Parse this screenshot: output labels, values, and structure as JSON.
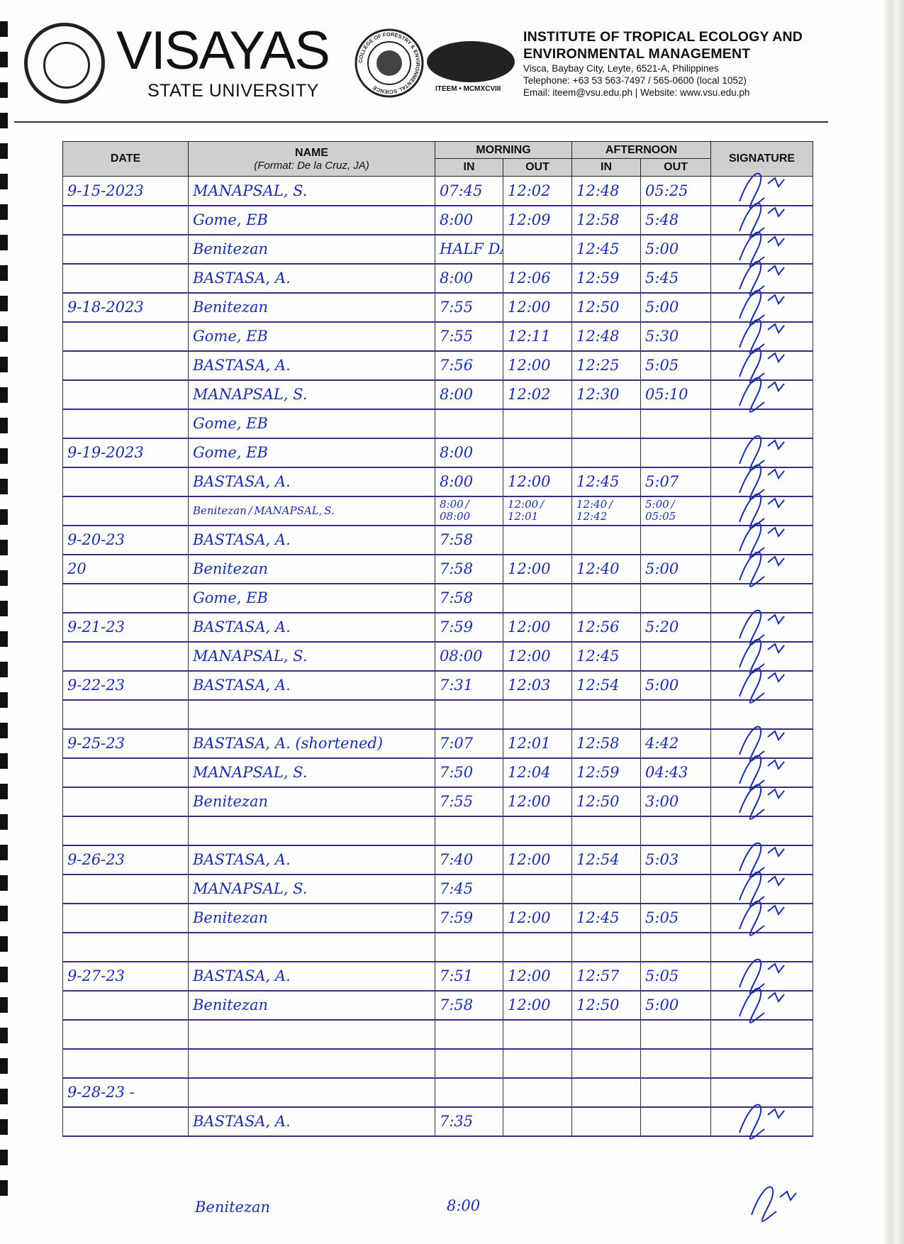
{
  "header": {
    "university_name": "VISAYAS",
    "university_sub": "STATE UNIVERSITY",
    "seal_text": "VISAYAS STATE UNIVERSITY",
    "college_logo_text": "COLLEGE OF FORESTRY & ENVIRONMENTAL SCIENCE",
    "iteem_logo_text": "ITEEM • MCMXCVIII",
    "institute_line1": "INSTITUTE OF TROPICAL ECOLOGY AND",
    "institute_line2": "ENVIRONMENTAL MANAGEMENT",
    "address": "Visca, Baybay City, Leyte, 6521-A, Philippines",
    "telephone": "Telephone: +63 53 563-7497 / 565-0600 (local 1052)",
    "email_web": "Email:  iteem@vsu.edu.ph | Website:  www.vsu.edu.ph"
  },
  "table": {
    "headers": {
      "date": "DATE",
      "name": "NAME",
      "name_format": "(Format:  De la Cruz, JA)",
      "morning": "MORNING",
      "afternoon": "AFTERNOON",
      "in": "IN",
      "out": "OUT",
      "signature": "SIGNATURE"
    },
    "rows": [
      {
        "date": "9-15-2023",
        "name": "MANAPSAL, S.",
        "am_in": "07:45",
        "am_out": "12:02",
        "pm_in": "12:48",
        "pm_out": "05:25",
        "signed": true
      },
      {
        "date": "",
        "name": "Gome, EB",
        "am_in": "8:00",
        "am_out": "12:09",
        "pm_in": "12:58",
        "pm_out": "5:48",
        "signed": true
      },
      {
        "date": "",
        "name": "Benitezan",
        "am_in": "HALF DAY",
        "am_out": "",
        "pm_in": "12:45",
        "pm_out": "5:00",
        "signed": true
      },
      {
        "date": "",
        "name": "BASTASA, A.",
        "am_in": "8:00",
        "am_out": "12:06",
        "pm_in": "12:59",
        "pm_out": "5:45",
        "signed": true
      },
      {
        "date": "9-18-2023",
        "name": "Benitezan",
        "am_in": "7:55",
        "am_out": "12:00",
        "pm_in": "12:50",
        "pm_out": "5:00",
        "signed": true
      },
      {
        "date": "",
        "name": "Gome, EB",
        "am_in": "7:55",
        "am_out": "12:11",
        "pm_in": "12:48",
        "pm_out": "5:30",
        "signed": true
      },
      {
        "date": "",
        "name": "BASTASA, A.",
        "am_in": "7:56",
        "am_out": "12:00",
        "pm_in": "12:25",
        "pm_out": "5:05",
        "signed": true
      },
      {
        "date": "",
        "name": "MANAPSAL, S.",
        "am_in": "8:00",
        "am_out": "12:02",
        "pm_in": "12:30",
        "pm_out": "05:10",
        "signed": true
      },
      {
        "date": "",
        "name": "Gome, EB",
        "am_in": "",
        "am_out": "",
        "pm_in": "",
        "pm_out": "",
        "signed": false
      },
      {
        "date": "9-19-2023",
        "name": "Gome, EB",
        "am_in": "8:00",
        "am_out": "",
        "pm_in": "",
        "pm_out": "",
        "signed": true
      },
      {
        "date": "",
        "name": "BASTASA, A.",
        "am_in": "8:00",
        "am_out": "12:00",
        "pm_in": "12:45",
        "pm_out": "5:07",
        "signed": true
      },
      {
        "date": "",
        "name": "Benitezan / MANAPSAL, S.",
        "am_in": "8:00 / 08:00",
        "am_out": "12:00 / 12:01",
        "pm_in": "12:40 / 12:42",
        "pm_out": "5:00 / 05:05",
        "signed": true
      },
      {
        "date": "9-20-23",
        "name": "BASTASA, A.",
        "am_in": "7:58",
        "am_out": "",
        "pm_in": "",
        "pm_out": "",
        "signed": true
      },
      {
        "date": "20",
        "name": "Benitezan",
        "am_in": "7:58",
        "am_out": "12:00",
        "pm_in": "12:40",
        "pm_out": "5:00",
        "signed": true
      },
      {
        "date": "",
        "name": "Gome, EB",
        "am_in": "7:58",
        "am_out": "",
        "pm_in": "",
        "pm_out": "",
        "signed": false
      },
      {
        "date": "9-21-23",
        "name": "BASTASA, A.",
        "am_in": "7:59",
        "am_out": "12:00",
        "pm_in": "12:56",
        "pm_out": "5:20",
        "signed": true
      },
      {
        "date": "",
        "name": "MANAPSAL, S.",
        "am_in": "08:00",
        "am_out": "12:00",
        "pm_in": "12:45",
        "pm_out": "",
        "signed": true
      },
      {
        "date": "9-22-23",
        "name": "BASTASA, A.",
        "am_in": "7:31",
        "am_out": "12:03",
        "pm_in": "12:54",
        "pm_out": "5:00",
        "signed": true
      },
      {
        "date": "",
        "name": "",
        "am_in": "",
        "am_out": "",
        "pm_in": "",
        "pm_out": "",
        "signed": false
      },
      {
        "date": "9-25-23",
        "name": "BASTASA, A. (shortened)",
        "am_in": "7:07",
        "am_out": "12:01",
        "pm_in": "12:58",
        "pm_out": "4:42",
        "signed": true
      },
      {
        "date": "",
        "name": "MANAPSAL, S.",
        "am_in": "7:50",
        "am_out": "12:04",
        "pm_in": "12:59",
        "pm_out": "04:43",
        "signed": true
      },
      {
        "date": "",
        "name": "Benitezan",
        "am_in": "7:55",
        "am_out": "12:00",
        "pm_in": "12:50",
        "pm_out": "3:00",
        "signed": true
      },
      {
        "date": "",
        "name": "",
        "am_in": "",
        "am_out": "",
        "pm_in": "",
        "pm_out": "",
        "signed": false
      },
      {
        "date": "9-26-23",
        "name": "BASTASA, A.",
        "am_in": "7:40",
        "am_out": "12:00",
        "pm_in": "12:54",
        "pm_out": "5:03",
        "signed": true
      },
      {
        "date": "",
        "name": "MANAPSAL, S.",
        "am_in": "7:45",
        "am_out": "",
        "pm_in": "",
        "pm_out": "",
        "signed": true
      },
      {
        "date": "",
        "name": "Benitezan",
        "am_in": "7:59",
        "am_out": "12:00",
        "pm_in": "12:45",
        "pm_out": "5:05",
        "signed": true
      },
      {
        "date": "",
        "name": "",
        "am_in": "",
        "am_out": "",
        "pm_in": "",
        "pm_out": "",
        "signed": false
      },
      {
        "date": "9-27-23",
        "name": "BASTASA, A.",
        "am_in": "7:51",
        "am_out": "12:00",
        "pm_in": "12:57",
        "pm_out": "5:05",
        "signed": true
      },
      {
        "date": "",
        "name": "Benitezan",
        "am_in": "7:58",
        "am_out": "12:00",
        "pm_in": "12:50",
        "pm_out": "5:00",
        "signed": true
      },
      {
        "date": "",
        "name": "",
        "am_in": "",
        "am_out": "",
        "pm_in": "",
        "pm_out": "",
        "signed": false
      },
      {
        "date": "",
        "name": "",
        "am_in": "",
        "am_out": "",
        "pm_in": "",
        "pm_out": "",
        "signed": false
      },
      {
        "date": "9-28-23 -",
        "name": "",
        "am_in": "",
        "am_out": "",
        "pm_in": "",
        "pm_out": "",
        "signed": false
      },
      {
        "date": "",
        "name": "BASTASA, A.",
        "am_in": "7:35",
        "am_out": "",
        "pm_in": "",
        "pm_out": "",
        "signed": true
      }
    ],
    "below_table": {
      "name": "Benitezan",
      "am_in": "8:00",
      "signed": true
    }
  },
  "colors": {
    "ink": "#1b2ea6",
    "header_fill": "#cfcfcf",
    "row_rule": "#3a2d86"
  }
}
